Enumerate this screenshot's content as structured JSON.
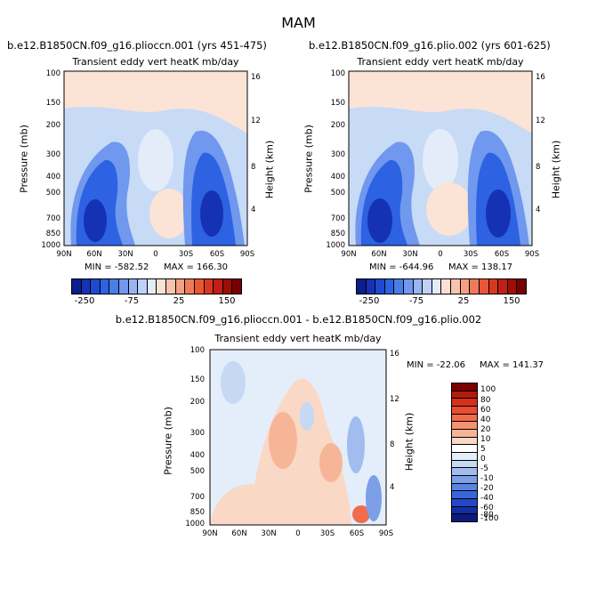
{
  "page_title": "MAM",
  "colors": {
    "panel_bg": "#e3ecf8",
    "lb_neg": [
      "#0b1e8c",
      "#1632b4",
      "#1f48d0",
      "#2d62e2",
      "#4a7de8",
      "#6f98ee",
      "#98b4f2",
      "#bfd1f7",
      "#e3ecf8"
    ],
    "lb_pos": [
      "#fbe1d4",
      "#f8c3ac",
      "#f4a082",
      "#ef7a59",
      "#e95636",
      "#da3722",
      "#c01f13",
      "#9e0e08",
      "#7a0000"
    ],
    "diff_scale": [
      "#7a0000",
      "#b31b0c",
      "#d4301c",
      "#e94c2f",
      "#f16c4c",
      "#f49272",
      "#f7b597",
      "#fad8c6",
      "#ffffff",
      "#e4eefa",
      "#c5d8f4",
      "#a1bdef",
      "#7c9fe8",
      "#5a84e2",
      "#3a66dc",
      "#2447c6",
      "#132ea4",
      "#0b1a7c"
    ]
  },
  "chart_data": [
    {
      "type": "heatmap",
      "title": "b.e12.B1850CN.f09_g16.plioccn.001 (yrs 451-475)",
      "subtitle": "Transient eddy vert heatK mb/day",
      "ylabel": "Pressure (mb)",
      "ylabel_right": "Height (km)",
      "x_ticks": [
        "90N",
        "60N",
        "30N",
        "0",
        "30S",
        "60S",
        "90S"
      ],
      "y_ticks": [
        "100",
        "150",
        "200",
        "300",
        "400",
        "500",
        "700",
        "850",
        "1000"
      ],
      "y_right_ticks": [
        "16",
        "12",
        "8",
        "4"
      ],
      "min_label": "MIN = -582.52",
      "max_label": "MAX = 166.30",
      "colorbar_labels": [
        "-250",
        "-75",
        "25",
        "150"
      ],
      "ylim": [
        1000,
        100
      ],
      "xlim": [
        "90N",
        "90S"
      ]
    },
    {
      "type": "heatmap",
      "title": "b.e12.B1850CN.f09_g16.plio.002 (yrs 601-625)",
      "subtitle": "Transient eddy vert heatK mb/day",
      "ylabel": "Pressure (mb)",
      "ylabel_right": "Height (km)",
      "x_ticks": [
        "90N",
        "60N",
        "30N",
        "0",
        "30S",
        "60S",
        "90S"
      ],
      "y_ticks": [
        "100",
        "150",
        "200",
        "300",
        "400",
        "500",
        "700",
        "850",
        "1000"
      ],
      "y_right_ticks": [
        "16",
        "12",
        "8",
        "4"
      ],
      "min_label": "MIN = -644.96",
      "max_label": "MAX = 138.17",
      "colorbar_labels": [
        "-250",
        "-75",
        "25",
        "150"
      ],
      "ylim": [
        1000,
        100
      ],
      "xlim": [
        "90N",
        "90S"
      ]
    },
    {
      "type": "heatmap",
      "title": "b.e12.B1850CN.f09_g16.plioccn.001 - b.e12.B1850CN.f09_g16.plio.002",
      "subtitle": "Transient eddy vert heatK mb/day",
      "ylabel": "Pressure (mb)",
      "ylabel_right": "Height (km)",
      "x_ticks": [
        "90N",
        "60N",
        "30N",
        "0",
        "30S",
        "60S",
        "90S"
      ],
      "y_ticks": [
        "100",
        "150",
        "200",
        "300",
        "400",
        "500",
        "700",
        "850",
        "1000"
      ],
      "y_right_ticks": [
        "16",
        "12",
        "8",
        "4"
      ],
      "min_label": "MIN = -22.06",
      "max_label": "MAX = 141.37",
      "colorbar_labels": [
        "100",
        "80",
        "60",
        "40",
        "20",
        "10",
        "5",
        "0",
        "-5",
        "-10",
        "-20",
        "-40",
        "-60",
        "-80",
        "-100"
      ],
      "ylim": [
        1000,
        100
      ],
      "xlim": [
        "90N",
        "90S"
      ]
    }
  ]
}
